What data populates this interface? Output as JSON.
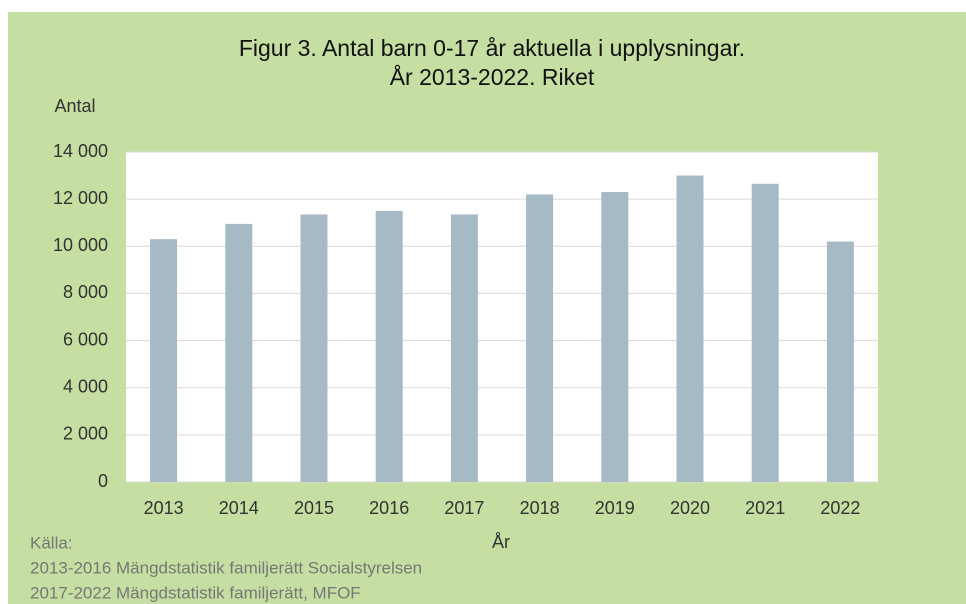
{
  "chart_data": {
    "type": "bar",
    "title": [
      "Figur 3. Antal barn 0-17 år aktuella i upplysningar.",
      "År 2013-2022. Riket"
    ],
    "y_label": "Antal",
    "x_label": "År",
    "categories": [
      "2013",
      "2014",
      "2015",
      "2016",
      "2017",
      "2018",
      "2019",
      "2020",
      "2021",
      "2022"
    ],
    "values": [
      10300,
      10950,
      11350,
      11500,
      11350,
      12200,
      12300,
      13000,
      12650,
      10200
    ],
    "color": "#a5bac4",
    "ylim": [
      0,
      14000
    ],
    "yticks": [
      0,
      {
        "value": 2000,
        "label": "2 000"
      },
      {
        "value": 4000,
        "label": "4 000"
      },
      {
        "value": 6000,
        "label": "6 000"
      },
      {
        "value": 8000,
        "label": "8 000"
      },
      {
        "value": 10000,
        "label": "10 000"
      },
      {
        "value": 12000,
        "label": "12 000"
      },
      {
        "value": 14000,
        "label": "14 000"
      }
    ],
    "grid": true,
    "source": [
      "Källa:",
      "2013-2016 Mängdstatistik familjerätt Socialstyrelsen",
      "2017-2022 Mängdstatistik familjerätt, MFOF"
    ]
  }
}
